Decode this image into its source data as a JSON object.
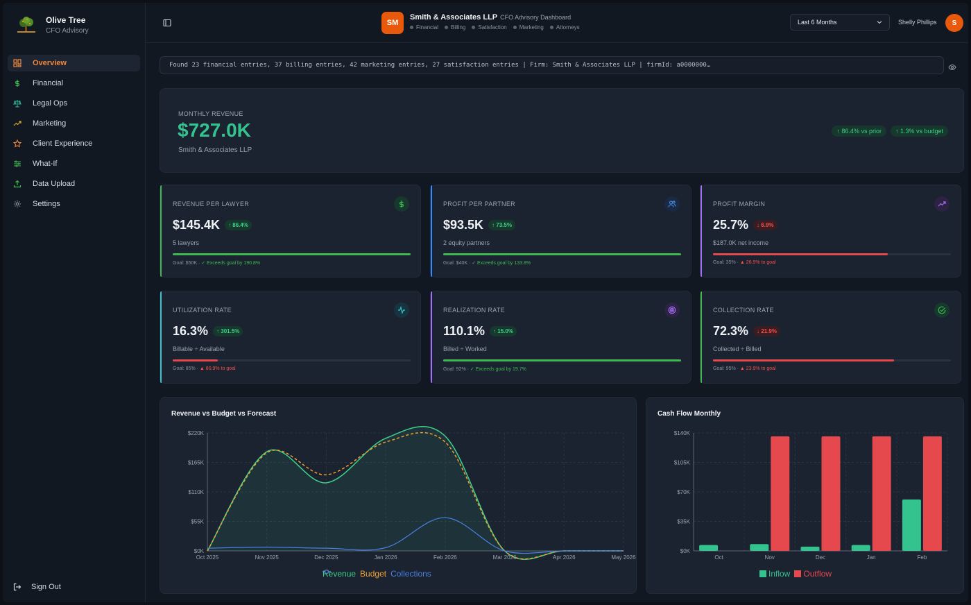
{
  "brand": {
    "name": "Olive Tree",
    "subtitle": "CFO Advisory"
  },
  "nav": {
    "items": [
      {
        "label": "Overview",
        "icon": "grid-icon",
        "active": true
      },
      {
        "label": "Financial",
        "icon": "dollar-icon"
      },
      {
        "label": "Legal Ops",
        "icon": "scales-icon"
      },
      {
        "label": "Marketing",
        "icon": "trending-up-icon"
      },
      {
        "label": "Client Experience",
        "icon": "star-icon"
      },
      {
        "label": "What-If",
        "icon": "sliders-icon"
      },
      {
        "label": "Data Upload",
        "icon": "upload-icon"
      },
      {
        "label": "Settings",
        "icon": "gear-icon"
      }
    ],
    "signout": "Sign Out"
  },
  "header": {
    "firm_initials": "SM",
    "firm_name": "Smith & Associates LLP",
    "firm_subtitle": "CFO Advisory Dashboard",
    "tags": [
      "Financial",
      "Billing",
      "Satisfaction",
      "Marketing",
      "Attorneys"
    ],
    "period": "Last 6 Months",
    "user_name": "Shelly Phillips",
    "user_initial": "S"
  },
  "log": {
    "text": "Found 23 financial entries, 37 billing entries, 42 marketing entries, 27 satisfaction entries | Firm: Smith & Associates LLP | firmId: a0000000…"
  },
  "hero": {
    "label": "MONTHLY REVENUE",
    "value": "$727.0K",
    "firm": "Smith & Associates LLP",
    "badge_prior": "↑ 86.4% vs prior",
    "badge_budget": "↑ 1.3% vs budget"
  },
  "kpis": [
    {
      "title": "REVENUE PER LAWYER",
      "value": "$145.4K",
      "delta": "↑ 86.4%",
      "delta_dir": "up",
      "sub": "5 lawyers",
      "goal": "Goal: $50K · ",
      "goal_status": "✓ Exceeds goal by 190.8%",
      "status": "good",
      "progress": 1.0,
      "accent": "#3fb950",
      "icon": "dollar-icon"
    },
    {
      "title": "PROFIT PER PARTNER",
      "value": "$93.5K",
      "delta": "↑ 73.5%",
      "delta_dir": "up",
      "sub": "2 equity partners",
      "goal": "Goal: $40K · ",
      "goal_status": "✓ Exceeds goal by 133.8%",
      "status": "good",
      "progress": 1.0,
      "accent": "#388bfd",
      "icon": "users-icon"
    },
    {
      "title": "PROFIT MARGIN",
      "value": "25.7%",
      "delta": "↓ 6.9%",
      "delta_dir": "down",
      "sub": "$187.0K net income",
      "goal": "Goal: 35% · ",
      "goal_status": "▲ 26.5% to goal",
      "status": "bad",
      "progress": 0.735,
      "accent": "#a371f7",
      "icon": "trending-up-icon"
    },
    {
      "title": "UTILIZATION RATE",
      "value": "16.3%",
      "delta": "↑ 301.5%",
      "delta_dir": "up",
      "sub": "Billable ÷ Available",
      "goal": "Goal: 85% · ",
      "goal_status": "▲ 80.9% to goal",
      "status": "bad",
      "progress": 0.19,
      "accent": "#39c5cf",
      "icon": "activity-icon"
    },
    {
      "title": "REALIZATION RATE",
      "value": "110.1%",
      "delta": "↑ 15.0%",
      "delta_dir": "up",
      "sub": "Billed ÷ Worked",
      "goal": "Goal: 92% · ",
      "goal_status": "✓ Exceeds goal by 19.7%",
      "status": "good",
      "progress": 1.0,
      "accent": "#a371f7",
      "icon": "target-icon"
    },
    {
      "title": "COLLECTION RATE",
      "value": "72.3%",
      "delta": "↓ 21.9%",
      "delta_dir": "down",
      "sub": "Collected ÷ Billed",
      "goal": "Goal: 95% · ",
      "goal_status": "▲ 23.9% to goal",
      "status": "bad",
      "progress": 0.76,
      "accent": "#3fb950",
      "icon": "check-circle-icon"
    }
  ],
  "charts": {
    "revenue_title": "Revenue vs Budget vs Forecast",
    "cash_title": "Cash Flow Monthly"
  },
  "chart_data": [
    {
      "type": "line",
      "title": "Revenue vs Budget vs Forecast",
      "categories": [
        "Oct 2025",
        "Nov 2025",
        "Dec 2025",
        "Jan 2026",
        "Feb 2026",
        "Mar 2026",
        "Apr 2026",
        "May 2026"
      ],
      "ylim": [
        0,
        220000
      ],
      "yticks": [
        "$0K",
        "$55K",
        "$110K",
        "$165K",
        "$220K"
      ],
      "series": [
        {
          "name": "Revenue",
          "color": "#3fd08a",
          "values": [
            0,
            185000,
            127000,
            210000,
            214000,
            0,
            0,
            0
          ]
        },
        {
          "name": "Budget",
          "color": "#f0a030",
          "values": [
            0,
            183000,
            142000,
            203000,
            203000,
            0,
            0,
            0
          ]
        },
        {
          "name": "Collections",
          "color": "#4a7fe0",
          "values": [
            5000,
            7000,
            5000,
            6000,
            62000,
            0,
            0,
            0
          ]
        }
      ]
    },
    {
      "type": "bar",
      "title": "Cash Flow Monthly",
      "categories": [
        "Oct",
        "Nov",
        "Dec",
        "Jan",
        "Feb"
      ],
      "ylim": [
        0,
        140000
      ],
      "yticks": [
        "$0K",
        "$35K",
        "$70K",
        "$105K",
        "$140K"
      ],
      "series": [
        {
          "name": "Inflow",
          "color": "#34c38f",
          "values": [
            7000,
            8000,
            5000,
            7000,
            61000
          ]
        },
        {
          "name": "Outflow",
          "color": "#e5484d",
          "values": [
            0,
            136000,
            136000,
            136000,
            136000
          ]
        }
      ]
    }
  ]
}
